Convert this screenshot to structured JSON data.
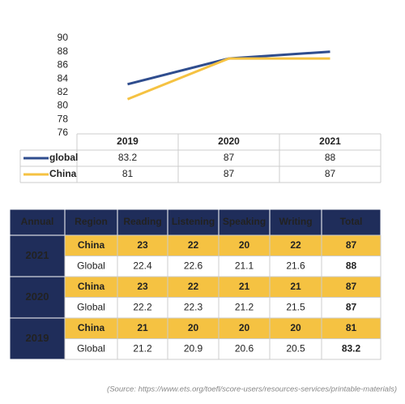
{
  "chart_data": {
    "type": "line",
    "categories": [
      "2019",
      "2020",
      "2021"
    ],
    "series": [
      {
        "name": "global",
        "color": "#2f4d8e",
        "values": [
          83.2,
          87,
          88
        ]
      },
      {
        "name": "China",
        "color": "#f5c242",
        "values": [
          81,
          87,
          87
        ]
      }
    ],
    "ylim": [
      76,
      90
    ],
    "yticks": [
      76,
      78,
      80,
      82,
      84,
      86,
      88,
      90
    ]
  },
  "table": {
    "columns": [
      "Annual",
      "Region",
      "Reading",
      "Listening",
      "Speaking",
      "Writing",
      "Total"
    ],
    "groups": [
      {
        "year": "2021",
        "rows": [
          [
            "China",
            "23",
            "22",
            "20",
            "22",
            "87"
          ],
          [
            "Global",
            "22.4",
            "22.6",
            "21.1",
            "21.6",
            "88"
          ]
        ]
      },
      {
        "year": "2020",
        "rows": [
          [
            "China",
            "23",
            "22",
            "21",
            "21",
            "87"
          ],
          [
            "Global",
            "22.2",
            "22.3",
            "21.2",
            "21.5",
            "87"
          ]
        ]
      },
      {
        "year": "2019",
        "rows": [
          [
            "China",
            "21",
            "20",
            "20",
            "20",
            "81"
          ],
          [
            "Global",
            "21.2",
            "20.9",
            "20.6",
            "20.5",
            "83.2"
          ]
        ]
      }
    ]
  },
  "source": "(Source: https://www.ets.org/toefl/score-users/resources-services/printable-materials)"
}
